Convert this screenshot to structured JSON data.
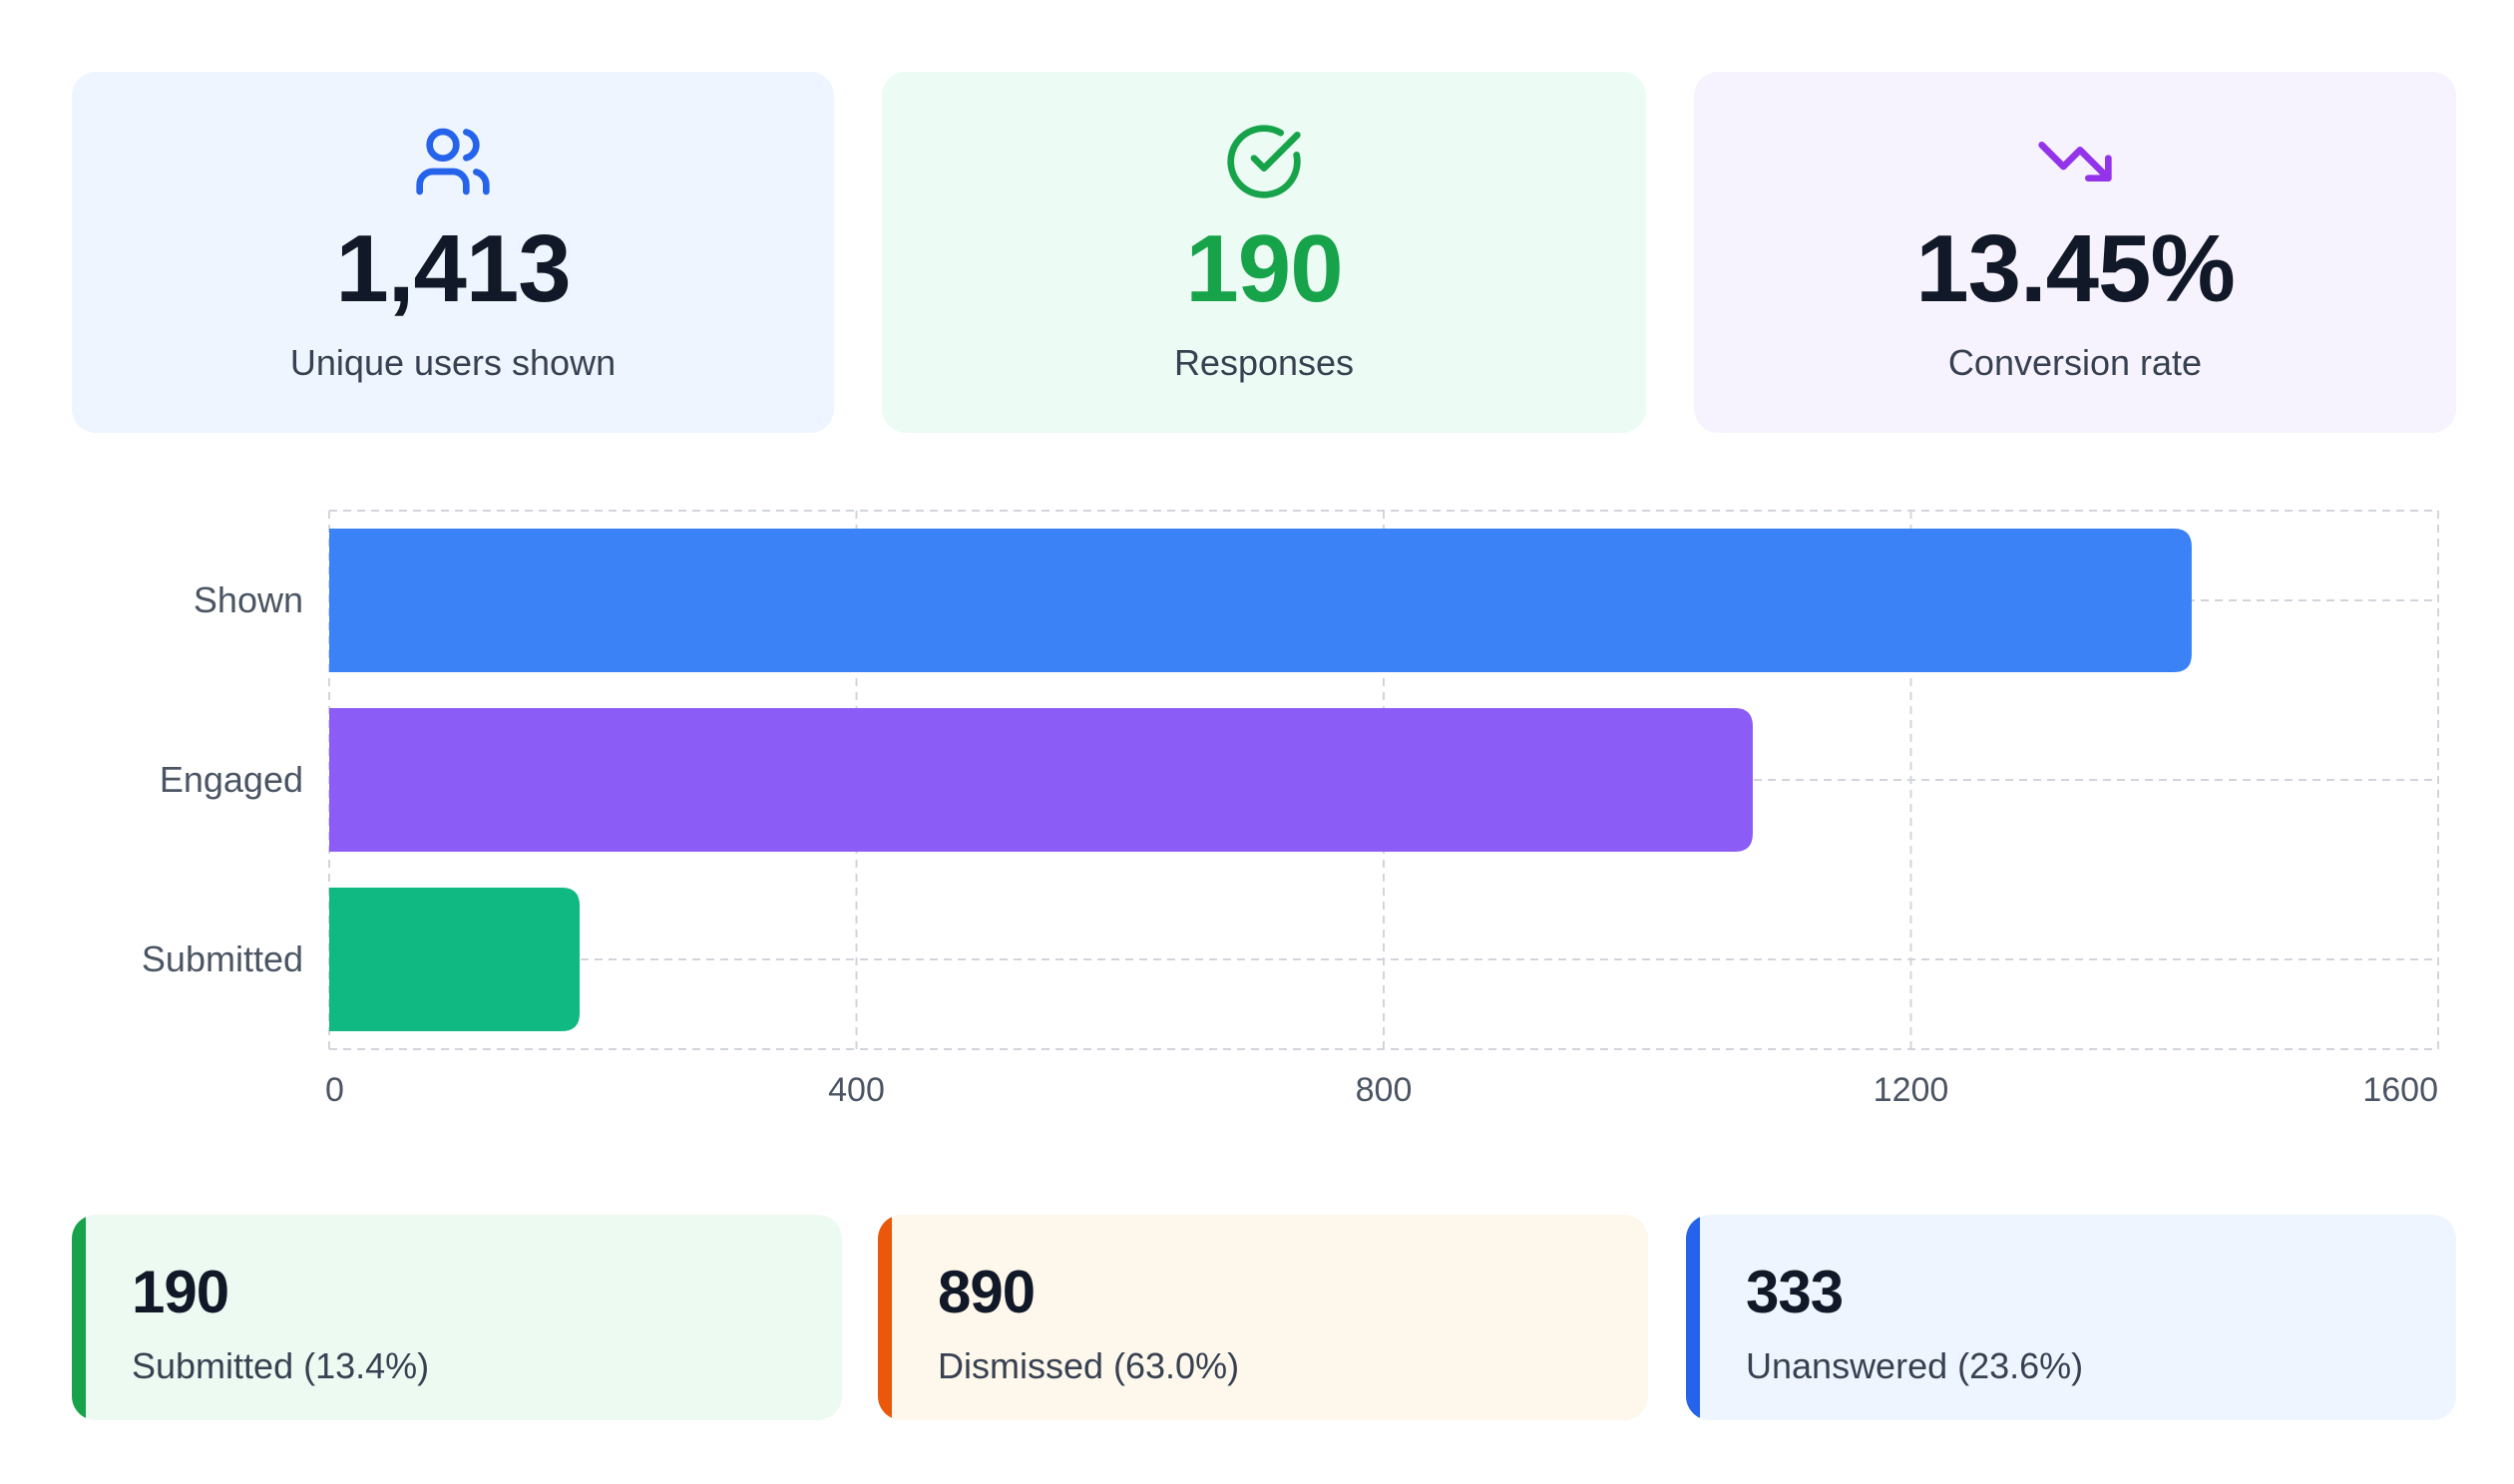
{
  "kpis": {
    "users": {
      "value": "1,413",
      "label": "Unique users shown",
      "icon": "users-icon",
      "color": "#111827",
      "icon_color": "#2563eb"
    },
    "responses": {
      "value": "190",
      "label": "Responses",
      "icon": "check-circle-icon",
      "color": "#16a34a",
      "icon_color": "#16a34a"
    },
    "conversion": {
      "value": "13.45%",
      "label": "Conversion rate",
      "icon": "trending-down-icon",
      "color": "#111827",
      "icon_color": "#9333ea"
    }
  },
  "chart_data": {
    "type": "bar",
    "orientation": "horizontal",
    "categories": [
      "Shown",
      "Engaged",
      "Submitted"
    ],
    "values": [
      1413,
      1080,
      190
    ],
    "colors": [
      "#3b82f6",
      "#8b5cf6",
      "#10b981"
    ],
    "xlim": [
      0,
      1600
    ],
    "xticks": [
      "0",
      "400",
      "800",
      "1200",
      "1600"
    ],
    "grid": true
  },
  "breakdown": [
    {
      "count": "190",
      "label": "Submitted (13.4%)",
      "color": "#16a34a"
    },
    {
      "count": "890",
      "label": "Dismissed (63.0%)",
      "color": "#ea580c"
    },
    {
      "count": "333",
      "label": "Unanswered (23.6%)",
      "color": "#2563eb"
    }
  ]
}
